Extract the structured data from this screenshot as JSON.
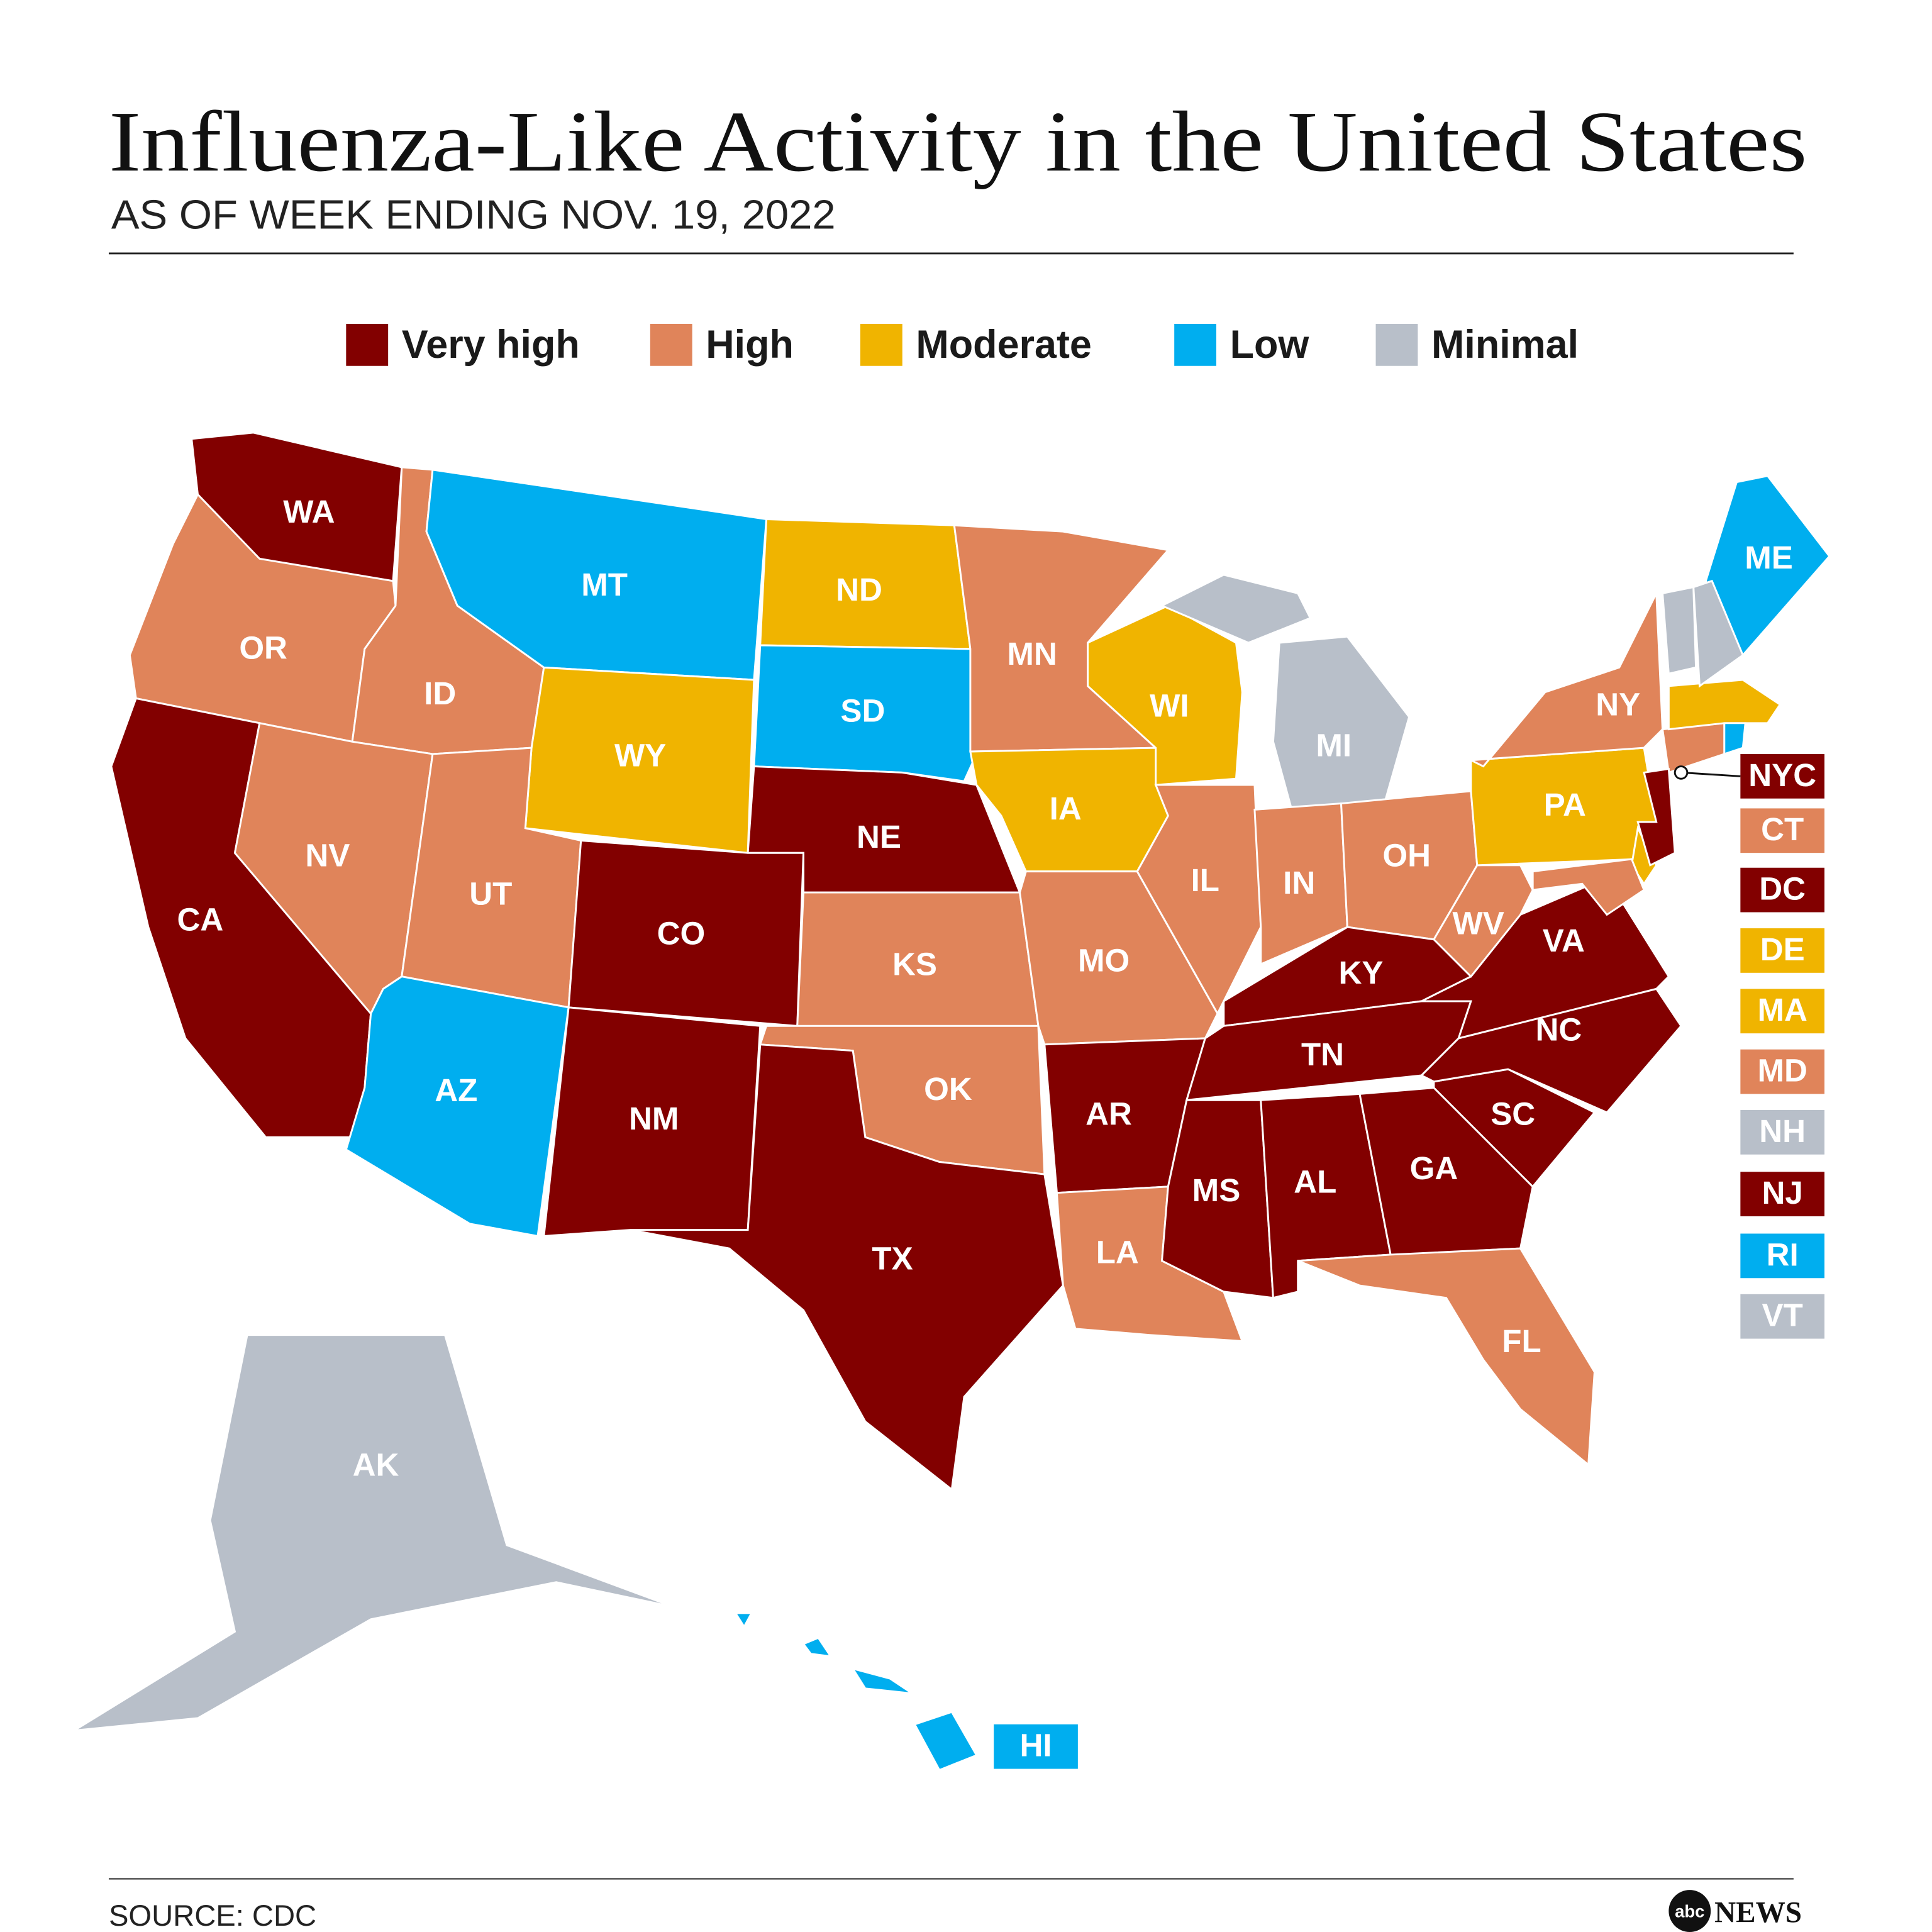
{
  "header": {
    "title": "Influenza-Like Activity in the United States",
    "subtitle": "AS OF WEEK ENDING NOV. 19, 2022"
  },
  "legend": [
    {
      "name": "Very high",
      "color": "#820000"
    },
    {
      "name": "High",
      "color": "#e0845a"
    },
    {
      "name": "Moderate",
      "color": "#f0b400"
    },
    {
      "name": "Low",
      "color": "#00aeef"
    },
    {
      "name": "Minimal",
      "color": "#b8bfc9"
    }
  ],
  "states": [
    {
      "label": "WA",
      "level": "Very high"
    },
    {
      "label": "OR",
      "level": "High"
    },
    {
      "label": "CA",
      "level": "Very high"
    },
    {
      "label": "ID",
      "level": "High"
    },
    {
      "label": "NV",
      "level": "High"
    },
    {
      "label": "MT",
      "level": "Low"
    },
    {
      "label": "WY",
      "level": "Moderate"
    },
    {
      "label": "UT",
      "level": "High"
    },
    {
      "label": "AZ",
      "level": "Low"
    },
    {
      "label": "CO",
      "level": "Very high"
    },
    {
      "label": "NM",
      "level": "Very high"
    },
    {
      "label": "ND",
      "level": "Moderate"
    },
    {
      "label": "SD",
      "level": "Low"
    },
    {
      "label": "NE",
      "level": "Very high"
    },
    {
      "label": "KS",
      "level": "High"
    },
    {
      "label": "OK",
      "level": "High"
    },
    {
      "label": "TX",
      "level": "Very high"
    },
    {
      "label": "MN",
      "level": "High"
    },
    {
      "label": "IA",
      "level": "Moderate"
    },
    {
      "label": "MO",
      "level": "High"
    },
    {
      "label": "AR",
      "level": "Very high"
    },
    {
      "label": "LA",
      "level": "High"
    },
    {
      "label": "WI",
      "level": "Moderate"
    },
    {
      "label": "IL",
      "level": "High"
    },
    {
      "label": "MI",
      "level": "Minimal"
    },
    {
      "label": "IN",
      "level": "High"
    },
    {
      "label": "OH",
      "level": "High"
    },
    {
      "label": "KY",
      "level": "Very high"
    },
    {
      "label": "TN",
      "level": "Very high"
    },
    {
      "label": "MS",
      "level": "Very high"
    },
    {
      "label": "AL",
      "level": "Very high"
    },
    {
      "label": "GA",
      "level": "Very high"
    },
    {
      "label": "FL",
      "level": "High"
    },
    {
      "label": "SC",
      "level": "Very high"
    },
    {
      "label": "NC",
      "level": "Very high"
    },
    {
      "label": "VA",
      "level": "Very high"
    },
    {
      "label": "WV",
      "level": "High"
    },
    {
      "label": "PA",
      "level": "Moderate"
    },
    {
      "label": "NY",
      "level": "High"
    },
    {
      "label": "ME",
      "level": "Low"
    },
    {
      "label": "AK",
      "level": "Minimal"
    },
    {
      "label": "HI",
      "level": "Low"
    },
    {
      "label": "NYC",
      "level": "Very high"
    },
    {
      "label": "CT",
      "level": "High"
    },
    {
      "label": "DC",
      "level": "Very high"
    },
    {
      "label": "DE",
      "level": "Moderate"
    },
    {
      "label": "MA",
      "level": "Moderate"
    },
    {
      "label": "MD",
      "level": "High"
    },
    {
      "label": "NH",
      "level": "Minimal"
    },
    {
      "label": "NJ",
      "level": "Very high"
    },
    {
      "label": "RI",
      "level": "Low"
    },
    {
      "label": "VT",
      "level": "Minimal"
    }
  ],
  "footer": {
    "source": "SOURCE: CDC",
    "logo_mark": "abc",
    "logo_text": "NEWS"
  }
}
